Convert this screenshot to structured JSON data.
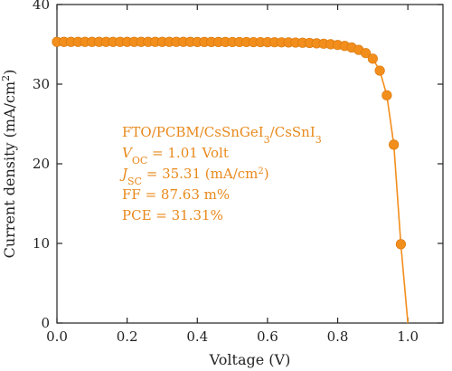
{
  "chart_data": {
    "type": "line",
    "xlabel": "Voltage (V)",
    "ylabel_parts": [
      "Current density (mA/cm",
      "2",
      ")"
    ],
    "xlim": [
      0.0,
      1.1
    ],
    "ylim": [
      0,
      40
    ],
    "xticks": [
      "0.0",
      "0.2",
      "0.4",
      "0.6",
      "0.8",
      "1.0"
    ],
    "xtick_values": [
      0.0,
      0.2,
      0.4,
      0.6,
      0.8,
      1.0
    ],
    "yticks": [
      "0",
      "10",
      "20",
      "30",
      "40"
    ],
    "ytick_values": [
      0,
      10,
      20,
      30,
      40
    ],
    "grid": false,
    "color": "#f28e1c",
    "series": [
      {
        "x": [
          0.0,
          0.02,
          0.04,
          0.06,
          0.08,
          0.1,
          0.12,
          0.14,
          0.16,
          0.18,
          0.2,
          0.22,
          0.24,
          0.26,
          0.28,
          0.3,
          0.32,
          0.34,
          0.36,
          0.38,
          0.4,
          0.42,
          0.44,
          0.46,
          0.48,
          0.5,
          0.52,
          0.54,
          0.56,
          0.58,
          0.6,
          0.62,
          0.64,
          0.66,
          0.68,
          0.7,
          0.72,
          0.74,
          0.76,
          0.78,
          0.8,
          0.82,
          0.84,
          0.86,
          0.88,
          0.9,
          0.92,
          0.94,
          0.96,
          0.98,
          1.0
        ],
        "y": [
          35.31,
          35.31,
          35.31,
          35.31,
          35.31,
          35.31,
          35.31,
          35.31,
          35.31,
          35.31,
          35.31,
          35.31,
          35.31,
          35.31,
          35.31,
          35.31,
          35.31,
          35.31,
          35.31,
          35.31,
          35.3,
          35.3,
          35.3,
          35.3,
          35.3,
          35.29,
          35.29,
          35.29,
          35.28,
          35.28,
          35.27,
          35.26,
          35.25,
          35.24,
          35.22,
          35.2,
          35.17,
          35.13,
          35.08,
          35.01,
          34.92,
          34.8,
          34.6,
          34.3,
          33.9,
          33.2,
          31.7,
          28.6,
          22.4,
          9.9,
          0
        ],
        "markers": 50
      }
    ],
    "annotations": [
      {
        "parts": [
          {
            "t": "FTO/PCBM/CsSnGeI",
            "s": "normal"
          },
          {
            "t": "3",
            "s": "sub"
          },
          {
            "t": "/CsSnI",
            "s": "normal"
          },
          {
            "t": "3",
            "s": "sub"
          }
        ]
      },
      {
        "parts": [
          {
            "t": "V",
            "s": "italic"
          },
          {
            "t": "OC",
            "s": "sub"
          },
          {
            "t": " = 1.01 Volt",
            "s": "normal"
          }
        ]
      },
      {
        "parts": [
          {
            "t": "J",
            "s": "italic"
          },
          {
            "t": "SC",
            "s": "sub"
          },
          {
            "t": " = 35.31 (mA/cm",
            "s": "normal"
          },
          {
            "t": "2",
            "s": "sup"
          },
          {
            "t": ")",
            "s": "normal"
          }
        ]
      },
      {
        "parts": [
          {
            "t": "FF = 87.63 m%",
            "s": "normal"
          }
        ]
      },
      {
        "parts": [
          {
            "t": "PCE = 31.31%",
            "s": "normal"
          }
        ]
      }
    ]
  }
}
